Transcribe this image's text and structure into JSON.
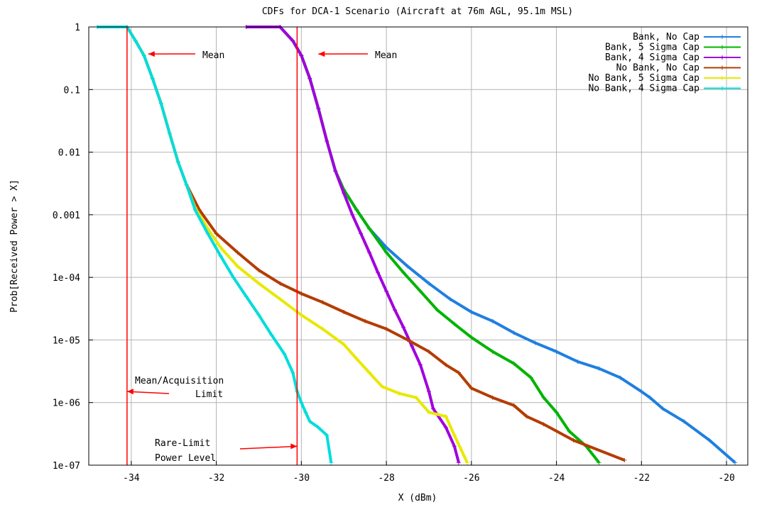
{
  "chart_data": {
    "type": "line",
    "title": "CDFs for DCA-1 Scenario (Aircraft at 76m AGL, 95.1m MSL)",
    "xlabel": "X (dBm)",
    "ylabel": "Prob[Received Power > X]",
    "xlim": [
      -35,
      -19.5
    ],
    "ylim": [
      1e-07,
      1
    ],
    "yscale": "log",
    "grid": true,
    "legend_position": "top-right",
    "x_ticks": [
      -34,
      -32,
      -30,
      -28,
      -26,
      -24,
      -22,
      -20
    ],
    "x_tick_labels": [
      "-34",
      "-32",
      "-30",
      "-28",
      "-26",
      "-24",
      "-22",
      "-20"
    ],
    "y_ticks": [
      1,
      0.1,
      0.01,
      0.001,
      0.0001,
      1e-05,
      1e-06,
      1e-07
    ],
    "y_tick_labels": [
      "1",
      "0.1",
      "0.01",
      "0.001",
      "1e-04",
      "1e-05",
      "1e-06",
      "1e-07"
    ],
    "series": [
      {
        "name": "Bank, No Cap",
        "color": "#1f7fe0",
        "points": [
          [
            -31.3,
            1
          ],
          [
            -30.5,
            1
          ],
          [
            -30.2,
            0.6
          ],
          [
            -30.0,
            0.35
          ],
          [
            -29.8,
            0.15
          ],
          [
            -29.6,
            0.05
          ],
          [
            -29.4,
            0.015
          ],
          [
            -29.2,
            0.005
          ],
          [
            -29.0,
            0.0025
          ],
          [
            -28.7,
            0.0012
          ],
          [
            -28.4,
            0.0006
          ],
          [
            -28.0,
            0.0003
          ],
          [
            -27.5,
            0.00015
          ],
          [
            -27.0,
            8e-05
          ],
          [
            -26.5,
            4.5e-05
          ],
          [
            -26.0,
            2.8e-05
          ],
          [
            -25.5,
            2e-05
          ],
          [
            -25.0,
            1.3e-05
          ],
          [
            -24.5,
            9e-06
          ],
          [
            -24.0,
            6.5e-06
          ],
          [
            -23.5,
            4.5e-06
          ],
          [
            -23.0,
            3.5e-06
          ],
          [
            -22.5,
            2.5e-06
          ],
          [
            -22.0,
            1.5e-06
          ],
          [
            -21.8,
            1.2e-06
          ],
          [
            -21.5,
            8e-07
          ],
          [
            -21.0,
            5e-07
          ],
          [
            -20.4,
            2.5e-07
          ],
          [
            -19.8,
            1.1e-07
          ]
        ]
      },
      {
        "name": "Bank, 5 Sigma Cap",
        "color": "#00b400",
        "points": [
          [
            -31.3,
            1
          ],
          [
            -30.5,
            1
          ],
          [
            -30.2,
            0.6
          ],
          [
            -30.0,
            0.35
          ],
          [
            -29.8,
            0.15
          ],
          [
            -29.6,
            0.05
          ],
          [
            -29.4,
            0.015
          ],
          [
            -29.2,
            0.005
          ],
          [
            -29.0,
            0.0025
          ],
          [
            -28.7,
            0.0012
          ],
          [
            -28.4,
            0.0006
          ],
          [
            -28.0,
            0.00025
          ],
          [
            -27.6,
            0.00012
          ],
          [
            -27.2,
            6e-05
          ],
          [
            -26.8,
            3e-05
          ],
          [
            -26.4,
            1.8e-05
          ],
          [
            -26.0,
            1.1e-05
          ],
          [
            -25.5,
            6.5e-06
          ],
          [
            -25.0,
            4.2e-06
          ],
          [
            -24.6,
            2.5e-06
          ],
          [
            -24.3,
            1.2e-06
          ],
          [
            -24.0,
            7e-07
          ],
          [
            -23.7,
            3.5e-07
          ],
          [
            -23.3,
            2e-07
          ],
          [
            -23.0,
            1.1e-07
          ]
        ]
      },
      {
        "name": "Bank, 4 Sigma Cap",
        "color": "#a000dc",
        "points": [
          [
            -31.3,
            1
          ],
          [
            -30.5,
            1
          ],
          [
            -30.2,
            0.6
          ],
          [
            -30.0,
            0.35
          ],
          [
            -29.8,
            0.15
          ],
          [
            -29.6,
            0.05
          ],
          [
            -29.4,
            0.015
          ],
          [
            -29.2,
            0.005
          ],
          [
            -29.0,
            0.0022
          ],
          [
            -28.8,
            0.001
          ],
          [
            -28.6,
            0.0005
          ],
          [
            -28.4,
            0.00025
          ],
          [
            -28.2,
            0.00012
          ],
          [
            -28.0,
            6e-05
          ],
          [
            -27.8,
            3e-05
          ],
          [
            -27.6,
            1.6e-05
          ],
          [
            -27.4,
            8e-06
          ],
          [
            -27.2,
            4e-06
          ],
          [
            -27.0,
            1.5e-06
          ],
          [
            -26.9,
            8e-07
          ],
          [
            -26.6,
            4e-07
          ],
          [
            -26.4,
            2e-07
          ],
          [
            -26.3,
            1.1e-07
          ]
        ]
      },
      {
        "name": "No Bank, No Cap",
        "color": "#b43c00",
        "points": [
          [
            -34.8,
            1
          ],
          [
            -34.1,
            1
          ],
          [
            -33.9,
            0.6
          ],
          [
            -33.7,
            0.35
          ],
          [
            -33.5,
            0.15
          ],
          [
            -33.3,
            0.06
          ],
          [
            -33.1,
            0.02
          ],
          [
            -32.9,
            0.007
          ],
          [
            -32.7,
            0.003
          ],
          [
            -32.4,
            0.0012
          ],
          [
            -32.0,
            0.0005
          ],
          [
            -31.5,
            0.00025
          ],
          [
            -31.0,
            0.00013
          ],
          [
            -30.5,
            8e-05
          ],
          [
            -30.0,
            5.5e-05
          ],
          [
            -29.5,
            4e-05
          ],
          [
            -29.0,
            2.8e-05
          ],
          [
            -28.5,
            2e-05
          ],
          [
            -28.0,
            1.5e-05
          ],
          [
            -27.5,
            1e-05
          ],
          [
            -27.0,
            6.5e-06
          ],
          [
            -26.6,
            4e-06
          ],
          [
            -26.3,
            3e-06
          ],
          [
            -26.0,
            1.7e-06
          ],
          [
            -25.5,
            1.2e-06
          ],
          [
            -25.0,
            9e-07
          ],
          [
            -24.7,
            6e-07
          ],
          [
            -24.3,
            4.5e-07
          ],
          [
            -23.6,
            2.5e-07
          ],
          [
            -22.4,
            1.2e-07
          ]
        ]
      },
      {
        "name": "No Bank, 5 Sigma Cap",
        "color": "#e8e800",
        "points": [
          [
            -34.8,
            1
          ],
          [
            -34.1,
            1
          ],
          [
            -33.9,
            0.6
          ],
          [
            -33.7,
            0.35
          ],
          [
            -33.5,
            0.15
          ],
          [
            -33.3,
            0.06
          ],
          [
            -33.1,
            0.02
          ],
          [
            -32.9,
            0.007
          ],
          [
            -32.7,
            0.003
          ],
          [
            -32.5,
            0.0013
          ],
          [
            -32.2,
            0.0006
          ],
          [
            -31.9,
            0.0003
          ],
          [
            -31.5,
            0.00015
          ],
          [
            -31.0,
            8e-05
          ],
          [
            -30.5,
            4.5e-05
          ],
          [
            -30.0,
            2.5e-05
          ],
          [
            -29.5,
            1.5e-05
          ],
          [
            -29.0,
            8.5e-06
          ],
          [
            -28.7,
            5e-06
          ],
          [
            -28.4,
            3e-06
          ],
          [
            -28.1,
            1.8e-06
          ],
          [
            -27.7,
            1.4e-06
          ],
          [
            -27.3,
            1.2e-06
          ],
          [
            -27.0,
            7e-07
          ],
          [
            -26.6,
            6e-07
          ],
          [
            -26.4,
            3e-07
          ],
          [
            -26.1,
            1.1e-07
          ]
        ]
      },
      {
        "name": "No Bank, 4 Sigma Cap",
        "color": "#00dcdc",
        "points": [
          [
            -34.8,
            1
          ],
          [
            -34.1,
            1
          ],
          [
            -33.9,
            0.6
          ],
          [
            -33.7,
            0.35
          ],
          [
            -33.5,
            0.15
          ],
          [
            -33.3,
            0.06
          ],
          [
            -33.1,
            0.02
          ],
          [
            -32.9,
            0.007
          ],
          [
            -32.7,
            0.003
          ],
          [
            -32.5,
            0.0012
          ],
          [
            -32.2,
            0.0005
          ],
          [
            -31.9,
            0.00022
          ],
          [
            -31.6,
            0.0001
          ],
          [
            -31.3,
            5e-05
          ],
          [
            -31.0,
            2.5e-05
          ],
          [
            -30.7,
            1.2e-05
          ],
          [
            -30.4,
            6e-06
          ],
          [
            -30.2,
            3e-06
          ],
          [
            -30.1,
            1.5e-06
          ],
          [
            -30.0,
            1e-06
          ],
          [
            -29.9,
            7e-07
          ],
          [
            -29.8,
            5e-07
          ],
          [
            -29.6,
            4e-07
          ],
          [
            -29.4,
            3e-07
          ],
          [
            -29.3,
            1.1e-07
          ]
        ]
      }
    ],
    "reference_lines": [
      {
        "x": -34.1,
        "color": "#ff0000"
      },
      {
        "x": -30.1,
        "color": "#ff0000"
      }
    ],
    "annotations": [
      {
        "text": "Mean",
        "arrow_to": [
          -33.6,
          0.37
        ]
      },
      {
        "text": "Mean",
        "arrow_to": [
          -29.6,
          0.37
        ]
      },
      {
        "text": "Mean/Acquisition",
        "arrow_to": [
          -34.1,
          1.5e-06
        ]
      },
      {
        "text": "Limit"
      },
      {
        "text": "Rare-Limit",
        "arrow_to": [
          -30.1,
          2e-07
        ]
      },
      {
        "text": "Power Level"
      }
    ]
  }
}
